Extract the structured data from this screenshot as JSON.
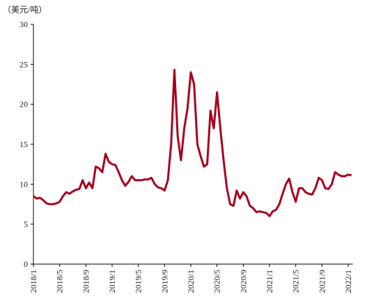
{
  "chart_data": {
    "type": "line",
    "y_axis_label": "（美元/吨）",
    "categories": [
      "2018/1",
      null,
      null,
      null,
      null,
      null,
      null,
      null,
      "2018/5",
      null,
      null,
      null,
      null,
      null,
      null,
      null,
      "2018/9",
      null,
      null,
      null,
      null,
      null,
      null,
      null,
      "2019/1",
      null,
      null,
      null,
      null,
      null,
      null,
      null,
      "2019/5",
      null,
      null,
      null,
      null,
      null,
      null,
      null,
      "2019/9",
      null,
      null,
      null,
      null,
      null,
      null,
      null,
      "2020/1",
      null,
      null,
      null,
      null,
      null,
      null,
      null,
      "2020/5",
      null,
      null,
      null,
      null,
      null,
      null,
      null,
      "2020/9",
      null,
      null,
      null,
      null,
      null,
      null,
      null,
      "2021/1",
      null,
      null,
      null,
      null,
      null,
      null,
      null,
      "2021/5",
      null,
      null,
      null,
      null,
      null,
      null,
      null,
      "2021/9",
      null,
      null,
      null,
      null,
      null,
      null,
      null,
      "2022/1",
      null
    ],
    "values": [
      8.5,
      8.2,
      8.3,
      8.0,
      7.6,
      7.5,
      7.5,
      7.6,
      7.8,
      8.5,
      9.0,
      8.8,
      9.1,
      9.3,
      9.4,
      10.5,
      9.5,
      10.2,
      9.5,
      12.2,
      12.0,
      11.5,
      13.8,
      12.8,
      12.5,
      12.4,
      11.5,
      10.5,
      9.8,
      10.3,
      11.0,
      10.5,
      10.5,
      10.5,
      10.6,
      10.6,
      10.8,
      10.0,
      9.6,
      9.5,
      9.2,
      10.5,
      15.0,
      24.3,
      16.0,
      13.0,
      17.0,
      19.5,
      24.0,
      22.5,
      15.0,
      13.5,
      12.2,
      12.5,
      19.2,
      17.0,
      21.5,
      17.0,
      13.0,
      9.5,
      7.5,
      7.3,
      9.2,
      8.2,
      9.0,
      8.5,
      7.3,
      7.0,
      6.5,
      6.6,
      6.5,
      6.4,
      6.0,
      6.6,
      6.8,
      7.5,
      8.8,
      10.0,
      10.7,
      9.0,
      7.8,
      9.5,
      9.5,
      9.0,
      8.8,
      8.7,
      9.5,
      10.8,
      10.5,
      9.5,
      9.4,
      10.0,
      11.5,
      11.2,
      11.0,
      11.0,
      11.2,
      11.1
    ],
    "color": "#a8001c",
    "ylim": [
      0,
      30
    ],
    "yticks": [
      0,
      5,
      10,
      15,
      20,
      25,
      30
    ],
    "grid": false
  }
}
